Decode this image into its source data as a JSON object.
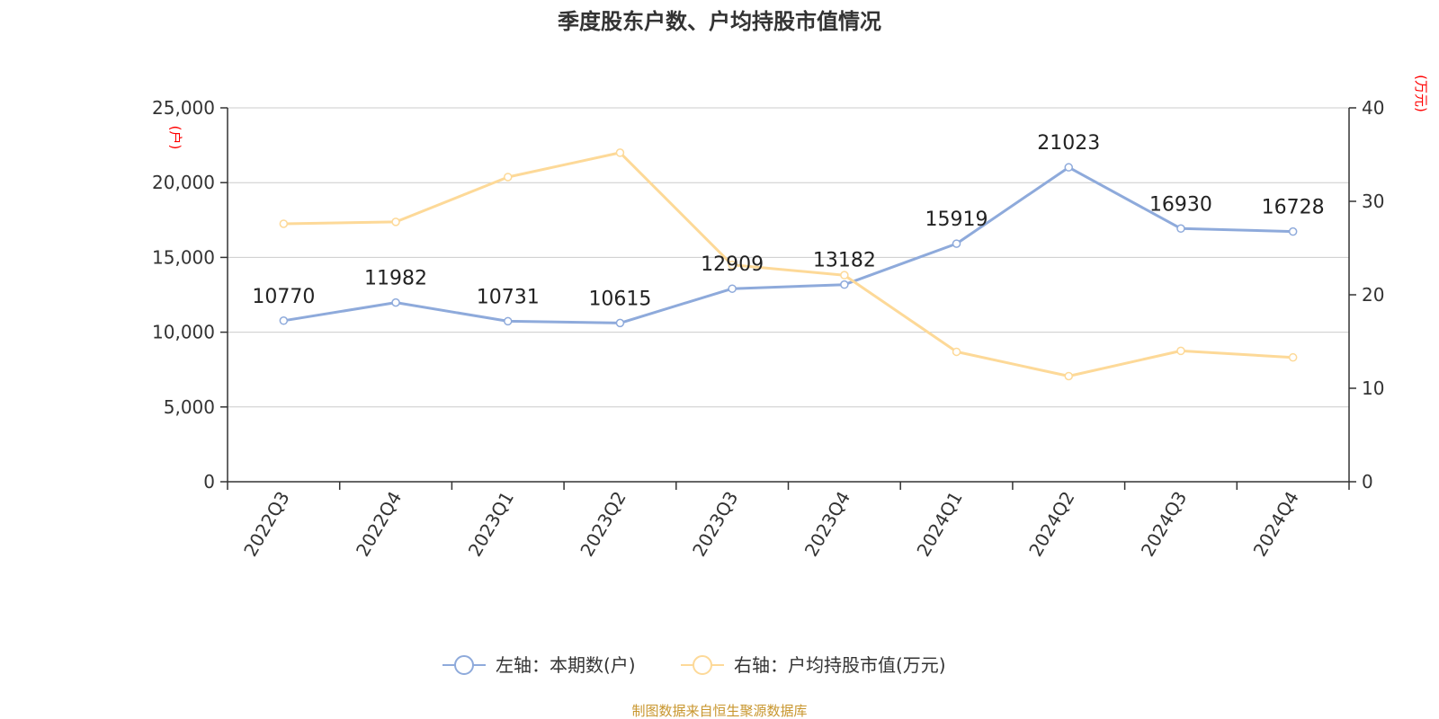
{
  "chart_data": {
    "type": "line",
    "title": "季度股东户数、户均持股市值情况",
    "categories": [
      "2022Q3",
      "2022Q4",
      "2023Q1",
      "2023Q2",
      "2023Q3",
      "2023Q4",
      "2024Q1",
      "2024Q2",
      "2024Q3",
      "2024Q4"
    ],
    "left_axis": {
      "unit": "(户)",
      "ylim": [
        0,
        25000
      ],
      "ticks": [
        0,
        5000,
        10000,
        15000,
        20000,
        25000
      ],
      "tick_labels": [
        "0",
        "5,000",
        "10,000",
        "15,000",
        "20,000",
        "25,000"
      ]
    },
    "right_axis": {
      "unit": "(万元)",
      "ylim": [
        0,
        40
      ],
      "ticks": [
        0,
        10,
        20,
        30,
        40
      ],
      "tick_labels": [
        "0",
        "10",
        "20",
        "30",
        "40"
      ]
    },
    "series": [
      {
        "name": "左轴：本期数(户)",
        "axis": "left",
        "color": "#8eaadb",
        "values": [
          10770,
          11982,
          10731,
          10615,
          12909,
          13182,
          15919,
          21023,
          16930,
          16728
        ],
        "data_labels": [
          "10770",
          "11982",
          "10731",
          "10615",
          "12909",
          "13182",
          "15919",
          "21023",
          "16930",
          "16728"
        ]
      },
      {
        "name": "右轴：户均持股市值(万元)",
        "axis": "right",
        "color": "#fdd998",
        "values": [
          27.6,
          27.8,
          32.6,
          35.2,
          23.2,
          22.1,
          13.9,
          11.3,
          14.0,
          13.3
        ]
      }
    ],
    "grid": true,
    "legend_position": "bottom-center"
  },
  "footer": {
    "source": "制图数据来自恒生聚源数据库"
  }
}
